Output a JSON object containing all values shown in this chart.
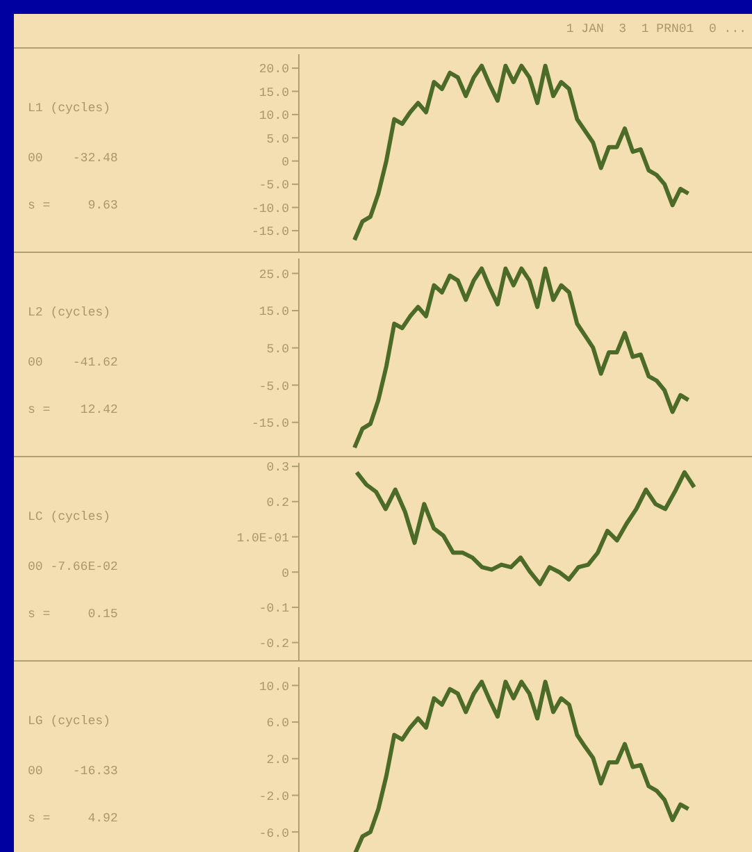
{
  "chart_data": [
    {
      "type": "line",
      "title": "1 JAN  3  1 PRN01  0 ...",
      "ylabel": "L1 (cycles)",
      "annotations": [
        "00    -32.48",
        "s =     9.63"
      ],
      "tick_labels": "y",
      "ylim": [
        -19.5,
        23
      ],
      "yticks": [
        {
          "value": 20,
          "label": "20.0"
        },
        {
          "value": 15,
          "label": "15.0"
        },
        {
          "value": 10,
          "label": "10.0"
        },
        {
          "value": 5,
          "label": "5.0"
        },
        0,
        {
          "value": -5,
          "label": "-5.0"
        },
        {
          "value": -10,
          "label": "-10.0"
        },
        {
          "value": -15,
          "label": "-15.0"
        }
      ],
      "categories": [
        null,
        null,
        null,
        null,
        null,
        null,
        null,
        null,
        null,
        null,
        null,
        null,
        null,
        null,
        null,
        null,
        null,
        null,
        null,
        null,
        null,
        null,
        null,
        null,
        null,
        null,
        null,
        null,
        null,
        null,
        null,
        null,
        null,
        null,
        null,
        null,
        null,
        null,
        null,
        null,
        null,
        null,
        null,
        null,
        null,
        null,
        null,
        null,
        null,
        null,
        null,
        null,
        null,
        null,
        null,
        null,
        null,
        null
      ],
      "series": [
        {
          "color": "#4d6b28",
          "values": [
            null,
            null,
            null,
            null,
            null,
            null,
            null,
            -17,
            -13,
            -12,
            -7,
            0,
            9,
            8,
            10.5,
            12.5,
            10.5,
            17,
            15.5,
            19,
            18,
            14,
            18,
            20.5,
            16.5,
            13,
            20.5,
            17,
            20.5,
            18,
            12.5,
            20.5,
            14,
            17,
            15.5,
            9,
            6.5,
            4,
            -1.5,
            3,
            3,
            7,
            2,
            2.5,
            -2,
            -3,
            -5,
            -9.5,
            -6,
            -7,
            null,
            null,
            null,
            null,
            null,
            null,
            null,
            null
          ]
        }
      ]
    },
    {
      "type": "line",
      "ylabel": "L2 (cycles)",
      "annotations": [
        "00    -41.62",
        "s =    12.42"
      ],
      "tick_labels": "y",
      "ylim": [
        -24,
        29
      ],
      "yticks": [
        {
          "value": 25,
          "label": "25.0"
        },
        {
          "value": 15,
          "label": "15.0"
        },
        {
          "value": 5,
          "label": "5.0"
        },
        {
          "value": -5,
          "label": "-5.0"
        },
        {
          "value": -15,
          "label": "-15.0"
        }
      ],
      "categories": [
        null,
        null,
        null,
        null,
        null,
        null,
        null,
        null,
        null,
        null,
        null,
        null,
        null,
        null,
        null,
        null,
        null,
        null,
        null,
        null,
        null,
        null,
        null,
        null,
        null,
        null,
        null,
        null,
        null,
        null,
        null,
        null,
        null,
        null,
        null,
        null,
        null,
        null,
        null,
        null,
        null,
        null,
        null,
        null,
        null,
        null,
        null,
        null,
        null,
        null,
        null,
        null,
        null,
        null,
        null,
        null,
        null,
        null
      ],
      "series": [
        {
          "color": "#4d6b28",
          "values": [
            null,
            null,
            null,
            null,
            null,
            null,
            null,
            -21.8,
            -16.7,
            -15.4,
            -9,
            0,
            11.5,
            10.3,
            13.5,
            16,
            13.5,
            21.8,
            19.9,
            24.4,
            23.1,
            17.9,
            23.1,
            26.3,
            21.2,
            16.7,
            26.3,
            21.8,
            26.3,
            23.1,
            16,
            26.3,
            17.9,
            21.8,
            19.9,
            11.5,
            8.3,
            5.1,
            -1.9,
            3.8,
            3.8,
            9,
            2.6,
            3.2,
            -2.6,
            -3.8,
            -6.4,
            -12.2,
            -7.7,
            -9,
            null,
            null,
            null,
            null,
            null,
            null,
            null,
            null
          ]
        }
      ]
    },
    {
      "type": "line",
      "ylabel": "LC (cycles)",
      "annotations": [
        "00 -7.66E-02",
        "s =     0.15"
      ],
      "tick_labels": "y",
      "ylim": [
        -0.25,
        0.31
      ],
      "yticks": [
        0.3,
        0.2,
        {
          "value": 0.1,
          "label": "1.0E-01"
        },
        0,
        -0.1,
        -0.2
      ],
      "categories": [
        null,
        null,
        null,
        null,
        null,
        null,
        null,
        null,
        null,
        null,
        null,
        null,
        null,
        null,
        null,
        null,
        null,
        null,
        null,
        null,
        null,
        null,
        null,
        null,
        null,
        null,
        null,
        null,
        null,
        null,
        null,
        null,
        null,
        null,
        null,
        null,
        null,
        null,
        null,
        null,
        null,
        null,
        null,
        null,
        null,
        null,
        null,
        null
      ],
      "series": [
        {
          "color": "#4d6b28",
          "values": [
            null,
            null,
            null,
            null,
            null,
            null,
            0.283,
            0.248,
            0.228,
            0.179,
            0.234,
            0.172,
            0.083,
            0.193,
            0.124,
            0.103,
            0.055,
            0.055,
            0.041,
            0.014,
            0.007,
            0.021,
            0.014,
            0.041,
            0,
            -0.034,
            0.014,
            0,
            -0.021,
            0.014,
            0.021,
            0.055,
            0.117,
            0.09,
            0.138,
            0.179,
            0.234,
            0.193,
            0.179,
            0.228,
            0.283,
            0.241,
            null,
            null,
            null,
            null,
            null,
            null
          ]
        }
      ]
    },
    {
      "type": "line",
      "ylabel": "LG (cycles)",
      "annotations": [
        "00    -16.33",
        "s =     4.92"
      ],
      "tick_labels": "y",
      "ylim": [
        -8.8,
        12
      ],
      "yticks": [
        {
          "value": 10,
          "label": "10.0"
        },
        {
          "value": 6,
          "label": "6.0"
        },
        {
          "value": 2,
          "label": "2.0"
        },
        {
          "value": -2,
          "label": "-2.0"
        },
        {
          "value": -6,
          "label": "-6.0"
        }
      ],
      "categories": [
        null,
        null,
        null,
        null,
        null,
        null,
        null,
        null,
        null,
        null,
        null,
        null,
        null,
        null,
        null,
        null,
        null,
        null,
        null,
        null,
        null,
        null,
        null,
        null,
        null,
        null,
        null,
        null,
        null,
        null,
        null,
        null,
        null,
        null,
        null,
        null,
        null,
        null,
        null,
        null,
        null,
        null,
        null,
        null,
        null,
        null,
        null,
        null,
        null,
        null,
        null,
        null,
        null,
        null,
        null,
        null,
        null,
        null
      ],
      "series": [
        {
          "color": "#4d6b28",
          "values": [
            null,
            null,
            null,
            null,
            null,
            null,
            null,
            -8.5,
            -6.5,
            -6,
            -3.5,
            0.1,
            4.6,
            4.1,
            5.4,
            6.4,
            5.4,
            8.6,
            7.9,
            9.6,
            9.1,
            7.1,
            9.1,
            10.4,
            8.4,
            6.6,
            10.4,
            8.6,
            10.4,
            9.1,
            6.4,
            10.4,
            7.1,
            8.6,
            7.9,
            4.6,
            3.3,
            2.1,
            -0.7,
            1.6,
            1.6,
            3.6,
            1.1,
            1.3,
            -1,
            -1.5,
            -2.5,
            -4.7,
            -3,
            -3.5,
            null,
            null,
            null,
            null,
            null,
            null,
            null,
            null
          ]
        }
      ]
    }
  ]
}
